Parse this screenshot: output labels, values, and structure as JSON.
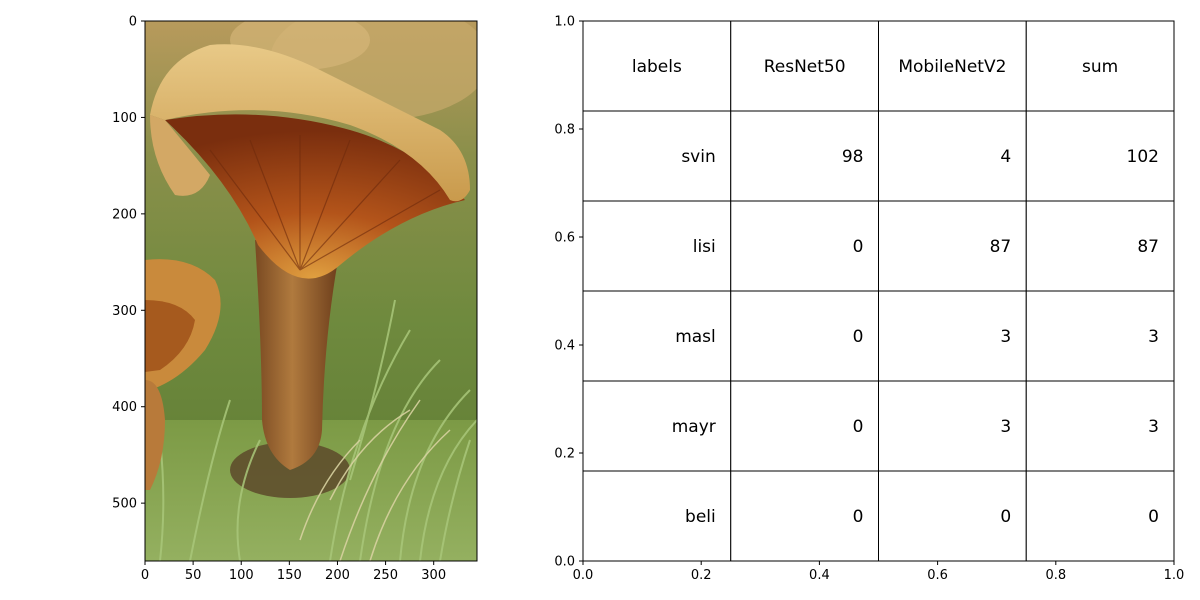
{
  "chart_data": [
    {
      "type": "image",
      "image_subject": "mushroom photo",
      "xlim": [
        0,
        345
      ],
      "ylim": [
        0,
        560
      ],
      "y_inverted": true,
      "xticks": [
        "0",
        "50",
        "100",
        "150",
        "200",
        "250",
        "300"
      ],
      "yticks": [
        "0",
        "100",
        "200",
        "300",
        "400",
        "500"
      ]
    },
    {
      "type": "table",
      "columns": [
        "labels",
        "ResNet50",
        "MobileNetV2",
        "sum"
      ],
      "rows": [
        [
          "svin",
          "98",
          "4",
          "102"
        ],
        [
          "lisi",
          "0",
          "87",
          "87"
        ],
        [
          "masl",
          "0",
          "3",
          "3"
        ],
        [
          "mayr",
          "0",
          "3",
          "3"
        ],
        [
          "beli",
          "0",
          "0",
          "0"
        ]
      ],
      "xlim": [
        0,
        1
      ],
      "ylim": [
        0,
        1
      ],
      "xticks": [
        "0.0",
        "0.2",
        "0.4",
        "0.6",
        "0.8",
        "1.0"
      ],
      "yticks": [
        "0.0",
        "0.2",
        "0.4",
        "0.6",
        "0.8",
        "1.0"
      ]
    }
  ]
}
